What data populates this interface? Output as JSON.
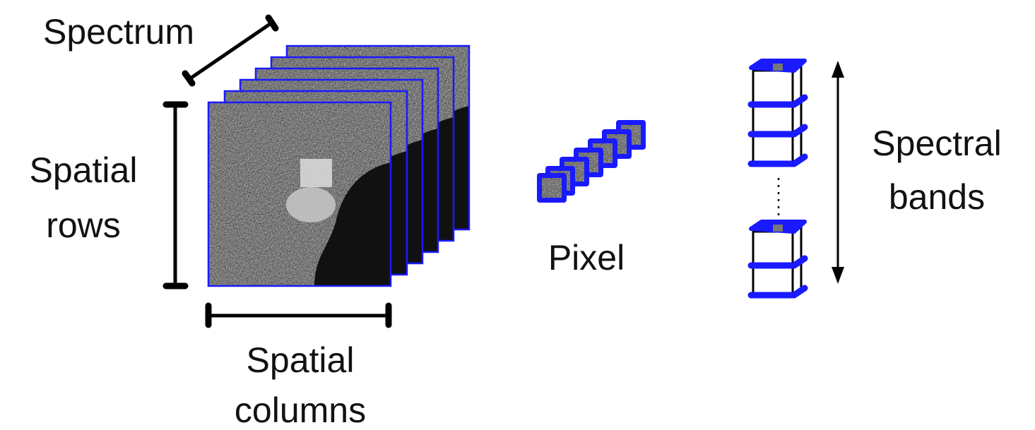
{
  "labels": {
    "spectrum": "Spectrum",
    "spatial_rows": [
      "Spatial",
      "rows"
    ],
    "spatial_columns": [
      "Spatial",
      "columns"
    ],
    "pixel": "Pixel",
    "spectral_bands": [
      "Spectral",
      "bands"
    ]
  }
}
